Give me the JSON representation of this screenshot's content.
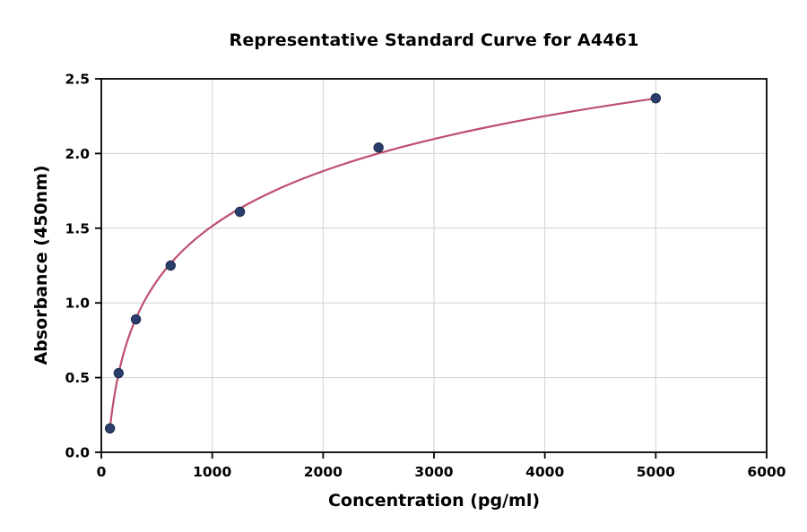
{
  "chart_data": {
    "type": "scatter",
    "title": "Representative Standard Curve for A4461",
    "xlabel": "Concentration (pg/ml)",
    "ylabel": "Absorbance (450nm)",
    "xlim": [
      0,
      6000
    ],
    "ylim": [
      0,
      2.5
    ],
    "x_ticks": [
      0,
      1000,
      2000,
      3000,
      4000,
      5000,
      6000
    ],
    "x_tick_labels": [
      "0",
      "1000",
      "2000",
      "3000",
      "4000",
      "5000",
      "6000"
    ],
    "y_ticks": [
      0,
      0.5,
      1.0,
      1.5,
      2.0,
      2.5
    ],
    "y_tick_labels": [
      "0.0",
      "0.5",
      "1.0",
      "1.5",
      "2.0",
      "2.5"
    ],
    "grid": true,
    "legend": "none",
    "points": [
      {
        "x": 78,
        "y": 0.16
      },
      {
        "x": 156,
        "y": 0.53
      },
      {
        "x": 312,
        "y": 0.89
      },
      {
        "x": 625,
        "y": 1.25
      },
      {
        "x": 1250,
        "y": 1.61
      },
      {
        "x": 2500,
        "y": 2.04
      },
      {
        "x": 5000,
        "y": 2.37
      }
    ],
    "curve_fit": {
      "type": "logarithmic",
      "formula": "y = a + b*ln(x)",
      "a": -2.154,
      "b": 0.531,
      "x_start": 78,
      "x_end": 5000
    },
    "colors": {
      "curve": "#bd4f6d",
      "points": "#2b3e6b",
      "point_edge": "#1d2c4f",
      "grid": "#d2d2d2",
      "axis": "#000000"
    }
  }
}
